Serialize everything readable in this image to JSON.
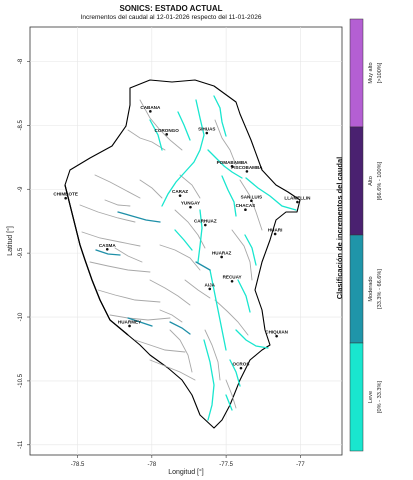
{
  "header": {
    "title": "SONICS: ESTADO ACTUAL",
    "subtitle": "Incrementos del caudal al 12-01-2026 respecto del 11-01-2026"
  },
  "axes": {
    "xlabel": "Longitud [°]",
    "ylabel": "Latitud [°]",
    "xticks": [
      "-78.5",
      "-78",
      "-77.5",
      "-77"
    ],
    "yticks": [
      "-8",
      "-8.5",
      "-9",
      "-9.5",
      "-10",
      "-10.5",
      "-11"
    ],
    "xlim": [
      -78.82,
      -76.72
    ],
    "ylim": [
      -11.08,
      -7.73
    ],
    "grid": true
  },
  "towns": [
    {
      "name": "CABANA",
      "lon": -78.01,
      "lat": -8.39
    },
    {
      "name": "CORONGO",
      "lon": -77.9,
      "lat": -8.57
    },
    {
      "name": "SIHUAS",
      "lon": -77.63,
      "lat": -8.56
    },
    {
      "name": "POMABAMBA",
      "lon": -77.46,
      "lat": -8.82
    },
    {
      "name": "PISCOBAMBA",
      "lon": -77.36,
      "lat": -8.86
    },
    {
      "name": "CHIMBOTE",
      "lon": -78.58,
      "lat": -9.07
    },
    {
      "name": "CARAZ",
      "lon": -77.81,
      "lat": -9.05
    },
    {
      "name": "YUNGAY",
      "lon": -77.74,
      "lat": -9.14
    },
    {
      "name": "SAN LUIS",
      "lon": -77.33,
      "lat": -9.09
    },
    {
      "name": "LLAMELLIN",
      "lon": -77.02,
      "lat": -9.1
    },
    {
      "name": "CHACAS",
      "lon": -77.37,
      "lat": -9.16
    },
    {
      "name": "CARHUAZ",
      "lon": -77.64,
      "lat": -9.28
    },
    {
      "name": "HUARI",
      "lon": -77.17,
      "lat": -9.35
    },
    {
      "name": "CASMA",
      "lon": -78.3,
      "lat": -9.47
    },
    {
      "name": "HUARAZ",
      "lon": -77.53,
      "lat": -9.53
    },
    {
      "name": "RECUAY",
      "lon": -77.46,
      "lat": -9.72
    },
    {
      "name": "AIJA",
      "lon": -77.61,
      "lat": -9.78
    },
    {
      "name": "HUARMEY",
      "lon": -78.15,
      "lat": -10.07
    },
    {
      "name": "CHIQUIAN",
      "lon": -77.16,
      "lat": -10.15
    },
    {
      "name": "OCROS",
      "lon": -77.4,
      "lat": -10.4
    }
  ],
  "legend": {
    "title": "Clasificación de incrementos del caudal",
    "classes": [
      {
        "name": "Muy alto",
        "range": "[>100%]",
        "color": "#b45fd3"
      },
      {
        "name": "Alto",
        "range": "[66.6% - 100%]",
        "color": "#4a2170"
      },
      {
        "name": "Moderado",
        "range": "[33.3% - 66.6%]",
        "color": "#1f95a9"
      },
      {
        "name": "Leve",
        "range": "[0% - 33.3%]",
        "color": "#19e6cf"
      }
    ]
  },
  "colors": {
    "river_base": "#a8a8a8",
    "river_leve": "#19e6cf",
    "river_moderado": "#1e8fa8",
    "river_alto": "#4a2170",
    "border": "#000000"
  }
}
